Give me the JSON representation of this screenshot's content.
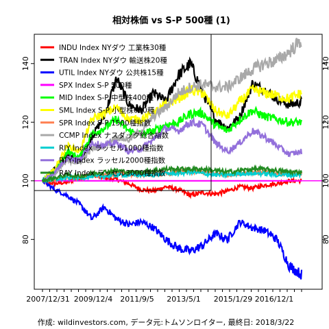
{
  "chart_data": {
    "type": "line",
    "title": "相対株価 vs S-P 500種 (1)",
    "caption": "作成: wildinvestors.com, データ元:トムソンロイター, 最終日: 2018/3/22",
    "x_tick_labels": [
      "2007/12/31",
      "2009/12/4",
      "2011/9/5",
      "2013/5/1",
      "2015/1/29",
      "2016/12/1"
    ],
    "y_ticks": [
      80,
      100,
      120,
      140
    ],
    "ylim": [
      63,
      150
    ],
    "grid": false,
    "legend_position": "top-left",
    "reference_line": {
      "y": 100,
      "color": "#ff00ff"
    },
    "series": [
      {
        "name": "INDU Index NYダウ 工業株30種",
        "color": "#ff0000",
        "values": [
          100,
          99,
          99.5,
          101,
          102,
          101,
          100.5,
          99,
          97,
          96.5,
          98,
          97,
          95,
          96,
          95.5,
          96.5,
          98,
          97.5,
          98.5,
          99,
          100,
          100
        ]
      },
      {
        "name": "TRAN Index NYダウ 輸送株20種",
        "color": "#000000",
        "values": [
          100,
          104,
          109,
          106,
          115,
          122,
          135,
          126,
          124,
          130,
          127,
          136,
          140,
          130,
          121,
          118,
          122,
          133,
          131,
          128,
          126,
          127
        ]
      },
      {
        "name": "UTIL Index NYダウ 公共株15種",
        "color": "#0000ff",
        "values": [
          100,
          97,
          95,
          92,
          87,
          91,
          87,
          85,
          86,
          84,
          80,
          77,
          76,
          78,
          82,
          80,
          86,
          84,
          83,
          80,
          71,
          68
        ]
      },
      {
        "name": "SPX Index S-P 500種",
        "color": "#ff00ff",
        "values": [
          100,
          100,
          100,
          100,
          100,
          100,
          100,
          100,
          100,
          100,
          100,
          100,
          100,
          100,
          100,
          100,
          100,
          100,
          100,
          100,
          100,
          100
        ]
      },
      {
        "name": "MID Index S-P 中型株400種",
        "color": "#00ff00",
        "values": [
          100,
          103,
          110,
          108,
          116,
          118,
          121,
          117,
          116,
          117,
          119,
          120,
          123,
          123,
          119,
          117,
          121,
          124,
          122,
          121,
          120,
          120
        ]
      },
      {
        "name": "SML Index S-P 小型株600種",
        "color": "#ffff00",
        "values": [
          100,
          104,
          112,
          110,
          121,
          123,
          125,
          121,
          121,
          123,
          126,
          128,
          131,
          130,
          124,
          122,
          127,
          131,
          130,
          129,
          128,
          130
        ]
      },
      {
        "name": "SPR Index S-P 1500種指数",
        "color": "#ff7f50",
        "values": [
          100,
          100.5,
          101,
          101,
          101.5,
          102,
          102.5,
          102,
          102,
          102.5,
          102.5,
          103,
          103,
          103,
          102.5,
          102,
          102.5,
          103,
          103,
          102.5,
          102.5,
          102.5
        ]
      },
      {
        "name": "CCMP Index ナスダック総合指数",
        "color": "#a9a9a9",
        "values": [
          100,
          102,
          107,
          106,
          111,
          112,
          115,
          114,
          117,
          122,
          125,
          130,
          132,
          133,
          132,
          132,
          135,
          138,
          140,
          141,
          144,
          148
        ]
      },
      {
        "name": "RIY Index ラッセル1000種指数",
        "color": "#00ced1",
        "values": [
          100,
          100.5,
          101,
          101,
          101.5,
          101.5,
          102,
          102,
          102,
          102,
          102.5,
          102.5,
          103,
          102.5,
          102,
          102,
          102.5,
          102.5,
          102.5,
          102,
          102,
          102
        ]
      },
      {
        "name": "RTY Index ラッセル2000種指数",
        "color": "#9370db",
        "values": [
          100,
          103,
          108,
          107,
          113,
          112,
          113,
          110,
          111,
          114,
          118,
          117,
          120,
          119,
          113,
          110,
          113,
          117,
          115,
          112,
          109,
          110
        ]
      },
      {
        "name": "RAY Index ラッセル3000種指数",
        "color": "#228b22",
        "values": [
          100,
          101,
          102,
          101.5,
          102.5,
          103,
          103.5,
          103,
          103,
          103.5,
          104,
          104,
          104,
          104,
          103.5,
          103,
          103.5,
          104,
          104,
          103.5,
          103,
          103
        ]
      }
    ]
  }
}
